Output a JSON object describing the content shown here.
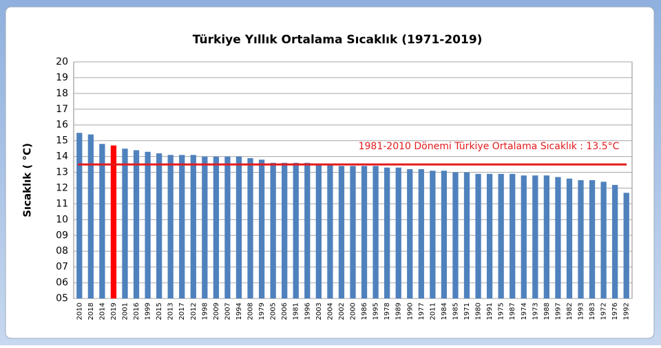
{
  "chart_data": {
    "type": "bar",
    "title": "Türkiye Yıllık Ortalama Sıcaklık (1971-2019)",
    "y_label": "Sıcaklık ( °C)",
    "categories": [
      "2010",
      "2018",
      "2014",
      "2019",
      "2001",
      "2016",
      "1999",
      "2015",
      "2013",
      "2017",
      "2012",
      "1998",
      "2009",
      "2007",
      "1994",
      "2008",
      "1979",
      "2005",
      "2006",
      "1981",
      "1996",
      "2003",
      "2004",
      "2002",
      "2000",
      "1986",
      "1995",
      "1978",
      "1989",
      "1990",
      "1977",
      "2011",
      "1984",
      "1985",
      "1971",
      "1980",
      "1991",
      "1975",
      "1987",
      "1974",
      "1973",
      "1988",
      "1997",
      "1982",
      "1993",
      "1983",
      "1972",
      "1976",
      "1992"
    ],
    "values": [
      15.5,
      15.4,
      14.8,
      14.7,
      14.5,
      14.4,
      14.3,
      14.2,
      14.1,
      14.1,
      14.1,
      14.0,
      14.0,
      14.0,
      14.0,
      13.9,
      13.8,
      13.6,
      13.6,
      13.6,
      13.6,
      13.5,
      13.5,
      13.4,
      13.4,
      13.4,
      13.4,
      13.3,
      13.3,
      13.2,
      13.2,
      13.1,
      13.1,
      13.0,
      13.0,
      12.9,
      12.9,
      12.9,
      12.9,
      12.8,
      12.8,
      12.8,
      12.7,
      12.6,
      12.5,
      12.5,
      12.4,
      12.2,
      11.7
    ],
    "colors": [
      "#4f81bd",
      "#4f81bd",
      "#4f81bd",
      "#ff0000",
      "#4f81bd",
      "#4f81bd",
      "#4f81bd",
      "#4f81bd",
      "#4f81bd",
      "#4f81bd",
      "#4f81bd",
      "#4f81bd",
      "#4f81bd",
      "#4f81bd",
      "#4f81bd",
      "#4f81bd",
      "#4f81bd",
      "#4f81bd",
      "#4f81bd",
      "#4f81bd",
      "#4f81bd",
      "#4f81bd",
      "#4f81bd",
      "#4f81bd",
      "#4f81bd",
      "#4f81bd",
      "#4f81bd",
      "#4f81bd",
      "#4f81bd",
      "#4f81bd",
      "#4f81bd",
      "#4f81bd",
      "#4f81bd",
      "#4f81bd",
      "#4f81bd",
      "#4f81bd",
      "#4f81bd",
      "#4f81bd",
      "#4f81bd",
      "#4f81bd",
      "#4f81bd",
      "#4f81bd",
      "#4f81bd",
      "#4f81bd",
      "#4f81bd",
      "#4f81bd",
      "#4f81bd",
      "#4f81bd",
      "#4f81bd"
    ],
    "ylim": [
      5,
      20
    ],
    "yticks": [
      {
        "value": 5,
        "label": "05"
      },
      {
        "value": 6,
        "label": "06"
      },
      {
        "value": 7,
        "label": "07"
      },
      {
        "value": 8,
        "label": "08"
      },
      {
        "value": 9,
        "label": "09"
      },
      10,
      11,
      12,
      13,
      14,
      15,
      16,
      17,
      18,
      19,
      20
    ],
    "grid": true,
    "reference_line": {
      "value": 13.5,
      "label": "1981-2010 Dönemi  Türkiye Ortalama Sıcaklık : 13.5°C",
      "color": "#e31a1c"
    }
  }
}
